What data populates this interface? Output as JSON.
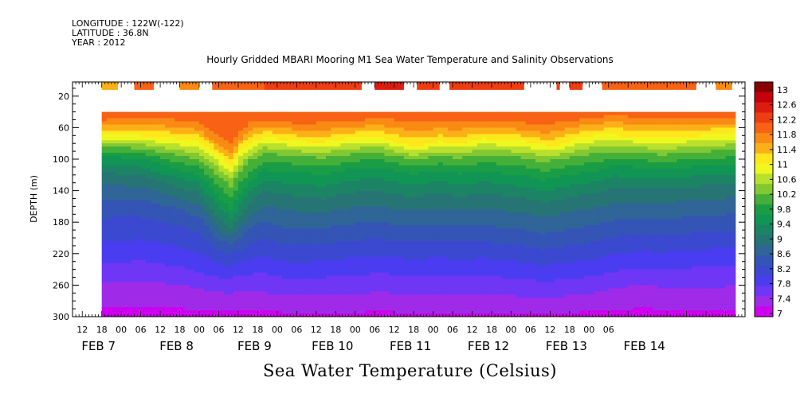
{
  "header": {
    "longitude": "LONGITUDE : 122W(-122)",
    "latitude": "LATITUDE : 36.8N",
    "year": "YEAR : 2012"
  },
  "title": "Hourly Gridded MBARI Mooring M1 Sea Water Temperature and Salinity Observations",
  "bottom_title": "Sea Water Temperature (Celsius)",
  "chart_data": {
    "type": "heatmap",
    "ylabel": "DEPTH (m)",
    "ylim": [
      300,
      2
    ],
    "y_ticks": [
      20,
      60,
      100,
      140,
      180,
      220,
      260,
      300
    ],
    "x_hour_labels": [
      "12",
      "18",
      "00",
      "06",
      "12",
      "18",
      "00",
      "06",
      "12",
      "18",
      "00",
      "06",
      "12",
      "18",
      "00",
      "06",
      "12",
      "18",
      "00",
      "06",
      "12",
      "18",
      "00",
      "06",
      "12",
      "18",
      "00",
      "06"
    ],
    "x_day_labels": [
      "FEB  7",
      "FEB  8",
      "FEB  9",
      "FEB 10",
      "FEB 11",
      "FEB 12",
      "FEB 13",
      "FEB 14"
    ],
    "colorbar": {
      "levels": [
        "13",
        "12.6",
        "12.2",
        "11.8",
        "11.4",
        "11",
        "10.6",
        "10.2",
        "9.8",
        "9.4",
        "9",
        "8.6",
        "8.2",
        "7.8",
        "7.4",
        "7"
      ],
      "colors": [
        "#8b0000",
        "#c4000b",
        "#dd1c10",
        "#ef3d12",
        "#f76214",
        "#f98a14",
        "#fbb018",
        "#ffe71c",
        "#eef81f",
        "#b9e02c",
        "#82c832",
        "#45b039",
        "#1a9d45",
        "#119555",
        "#1c8464",
        "#277475",
        "#2f6597",
        "#3455b5",
        "#3a49cf",
        "#4a3df0",
        "#6f36f5",
        "#9f2be8",
        "#ce00ef"
      ]
    },
    "surface_segments": [
      {
        "start_hour": 0,
        "end_hour": 5,
        "value": 11.5
      },
      {
        "start_hour": 10,
        "end_hour": 16,
        "value": 11.9
      },
      {
        "start_hour": 24,
        "end_hour": 30,
        "value": 11.6
      },
      {
        "start_hour": 34,
        "end_hour": 50,
        "value": 11.9
      },
      {
        "start_hour": 50,
        "end_hour": 80,
        "value": 12.2
      },
      {
        "start_hour": 84,
        "end_hour": 93,
        "value": 12.4
      },
      {
        "start_hour": 97,
        "end_hour": 104,
        "value": 12.2
      },
      {
        "start_hour": 107,
        "end_hour": 130,
        "value": 12.2
      },
      {
        "start_hour": 140,
        "end_hour": 141,
        "value": 12.2
      },
      {
        "start_hour": 144,
        "end_hour": 148,
        "value": 12.2
      },
      {
        "start_hour": 154,
        "end_hour": 183,
        "value": 11.9
      },
      {
        "start_hour": 189,
        "end_hour": 194,
        "value": 11.7
      }
    ],
    "x_range_hours": [
      -9,
      198
    ],
    "data_start_hour": 0,
    "data_end_hour": 194,
    "profile_top_m": 40,
    "isotherm_depths": [
      {
        "hour": 0,
        "d": [
          52,
          70,
          85,
          98,
          120,
          160,
          225,
          268
        ]
      },
      {
        "hour": 12,
        "d": [
          50,
          70,
          86,
          100,
          124,
          160,
          222,
          270
        ]
      },
      {
        "hour": 24,
        "d": [
          52,
          75,
          95,
          115,
          140,
          172,
          230,
          272
        ]
      },
      {
        "hour": 30,
        "d": [
          56,
          78,
          100,
          120,
          146,
          182,
          238,
          276
        ]
      },
      {
        "hour": 36,
        "d": [
          78,
          95,
          120,
          150,
          180,
          210,
          245,
          280
        ]
      },
      {
        "hour": 40,
        "d": [
          86,
          110,
          135,
          165,
          192,
          212,
          246,
          282
        ]
      },
      {
        "hour": 42,
        "d": [
          70,
          92,
          118,
          150,
          180,
          210,
          242,
          280
        ]
      },
      {
        "hour": 46,
        "d": [
          55,
          80,
          100,
          128,
          158,
          196,
          240,
          280
        ]
      },
      {
        "hour": 50,
        "d": [
          52,
          72,
          92,
          115,
          145,
          190,
          238,
          282
        ]
      },
      {
        "hour": 56,
        "d": [
          55,
          75,
          94,
          118,
          150,
          198,
          245,
          284
        ]
      },
      {
        "hour": 62,
        "d": [
          58,
          78,
          96,
          118,
          152,
          200,
          246,
          285
        ]
      },
      {
        "hour": 68,
        "d": [
          56,
          80,
          98,
          122,
          156,
          198,
          244,
          286
        ]
      },
      {
        "hour": 72,
        "d": [
          54,
          76,
          96,
          118,
          150,
          196,
          242,
          285
        ]
      },
      {
        "hour": 80,
        "d": [
          52,
          72,
          92,
          112,
          146,
          192,
          240,
          284
        ]
      },
      {
        "hour": 86,
        "d": [
          50,
          72,
          92,
          112,
          146,
          190,
          238,
          282
        ]
      },
      {
        "hour": 90,
        "d": [
          52,
          78,
          96,
          115,
          150,
          195,
          240,
          284
        ]
      },
      {
        "hour": 96,
        "d": [
          56,
          84,
          100,
          120,
          152,
          196,
          242,
          286
        ]
      },
      {
        "hour": 104,
        "d": [
          54,
          78,
          96,
          116,
          148,
          194,
          240,
          284
        ]
      },
      {
        "hour": 110,
        "d": [
          55,
          80,
          98,
          120,
          152,
          196,
          242,
          286
        ]
      },
      {
        "hour": 118,
        "d": [
          52,
          74,
          94,
          116,
          148,
          195,
          240,
          284
        ]
      },
      {
        "hour": 124,
        "d": [
          54,
          76,
          96,
          120,
          152,
          198,
          244,
          286
        ]
      },
      {
        "hour": 130,
        "d": [
          56,
          78,
          98,
          122,
          155,
          200,
          246,
          286
        ]
      },
      {
        "hour": 136,
        "d": [
          60,
          82,
          104,
          128,
          160,
          205,
          250,
          288
        ]
      },
      {
        "hour": 140,
        "d": [
          56,
          84,
          100,
          124,
          158,
          202,
          248,
          286
        ]
      },
      {
        "hour": 146,
        "d": [
          52,
          74,
          96,
          120,
          152,
          198,
          245,
          284
        ]
      },
      {
        "hour": 152,
        "d": [
          48,
          70,
          92,
          116,
          148,
          195,
          242,
          282
        ]
      },
      {
        "hour": 158,
        "d": [
          46,
          70,
          90,
          110,
          140,
          188,
          236,
          276
        ]
      },
      {
        "hour": 166,
        "d": [
          48,
          72,
          92,
          112,
          140,
          186,
          232,
          272
        ]
      },
      {
        "hour": 172,
        "d": [
          50,
          74,
          94,
          114,
          142,
          188,
          234,
          274
        ]
      },
      {
        "hour": 178,
        "d": [
          50,
          72,
          92,
          112,
          140,
          185,
          232,
          276
        ]
      },
      {
        "hour": 186,
        "d": [
          48,
          70,
          90,
          110,
          138,
          182,
          230,
          276
        ]
      },
      {
        "hour": 194,
        "d": [
          48,
          68,
          88,
          108,
          136,
          180,
          228,
          276
        ]
      }
    ],
    "isotherm_values": [
      11.8,
      11.0,
      10.2,
      9.6,
      9.0,
      8.4,
      7.8,
      7.3
    ],
    "top_value": 12.0,
    "bottom_value": 7.1
  }
}
